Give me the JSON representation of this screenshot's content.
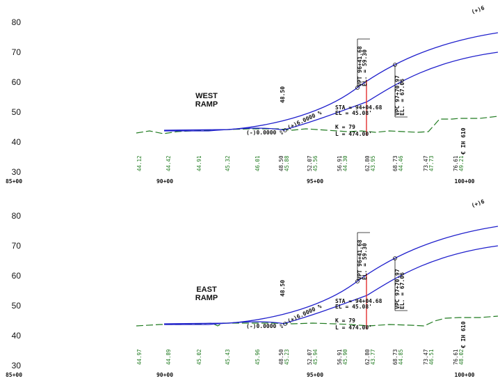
{
  "colors": {
    "profile": "#1f1fcc",
    "ground": "#1f7a1f",
    "vertical_line": "#e02020",
    "text": "#111111"
  },
  "panels": [
    {
      "ramp_label": [
        "WEST",
        "RAMP"
      ],
      "y_ticks": [
        "80",
        "70",
        "60",
        "50",
        "40",
        "30"
      ],
      "station_labels": [
        "85+00",
        "90+00",
        "95+00",
        "100+00"
      ],
      "top_value": "48.50",
      "grade_left": "(-)0.0000 %",
      "grade_mid": "(+)6.0000 %",
      "grade_top": "(+)6",
      "vpt": [
        "VPT 96+41.68",
        "EL. = 59.30"
      ],
      "vpc": [
        "VPC 97+70.97",
        "EL. = 67.06"
      ],
      "sta": [
        "STA = 94+04.68",
        "EL  = 45.08'"
      ],
      "curve": [
        "K = 79",
        "L   = 474.00'"
      ],
      "road_label": "IH 610",
      "bottom_values": [
        {
          "black": "",
          "green": "44.12"
        },
        {
          "black": "",
          "green": "44.42"
        },
        {
          "black": "",
          "green": "44.91"
        },
        {
          "black": "",
          "green": "45.32"
        },
        {
          "black": "",
          "green": "46.01"
        },
        {
          "black": "48.50",
          "green": "45.88"
        },
        {
          "black": "52.07",
          "green": "45.56"
        },
        {
          "black": "56.91",
          "green": "44.30"
        },
        {
          "black": "62.80",
          "green": "43.95"
        },
        {
          "black": "68.73",
          "green": "44.46"
        },
        {
          "black": "73.47",
          "green": "47.73"
        },
        {
          "black": "76.61",
          "green": "49.21"
        }
      ]
    },
    {
      "ramp_label": [
        "EAST",
        "RAMP"
      ],
      "y_ticks": [
        "80",
        "70",
        "60",
        "50",
        "40",
        "30"
      ],
      "station_labels": [
        "85+00",
        "90+00",
        "95+00",
        "100+00"
      ],
      "top_value": "48.50",
      "grade_left": "(-)0.0000 %",
      "grade_mid": "(+)6.0000 %",
      "grade_top": "(+)6",
      "vpt": [
        "VPT 96+41.68",
        "EL. = 59.30"
      ],
      "vpc": [
        "VPC 97+70.97",
        "EL. = 67.06"
      ],
      "sta": [
        "STA = 94+04.68",
        "EL  = 45.08'"
      ],
      "curve": [
        "K = 79",
        "L   = 474.00'"
      ],
      "road_label": "IH 610",
      "bottom_values": [
        {
          "black": "",
          "green": "44.97"
        },
        {
          "black": "",
          "green": "44.89"
        },
        {
          "black": "",
          "green": "45.02"
        },
        {
          "black": "",
          "green": "45.43"
        },
        {
          "black": "",
          "green": "45.96"
        },
        {
          "black": "48.50",
          "green": "45.23"
        },
        {
          "black": "52.07",
          "green": "45.94"
        },
        {
          "black": "56.91",
          "green": "45.90"
        },
        {
          "black": "62.80",
          "green": "43.77"
        },
        {
          "black": "68.73",
          "green": "44.85"
        },
        {
          "black": "73.47",
          "green": "46.51"
        },
        {
          "black": "76.61",
          "green": "48.02"
        }
      ]
    }
  ]
}
